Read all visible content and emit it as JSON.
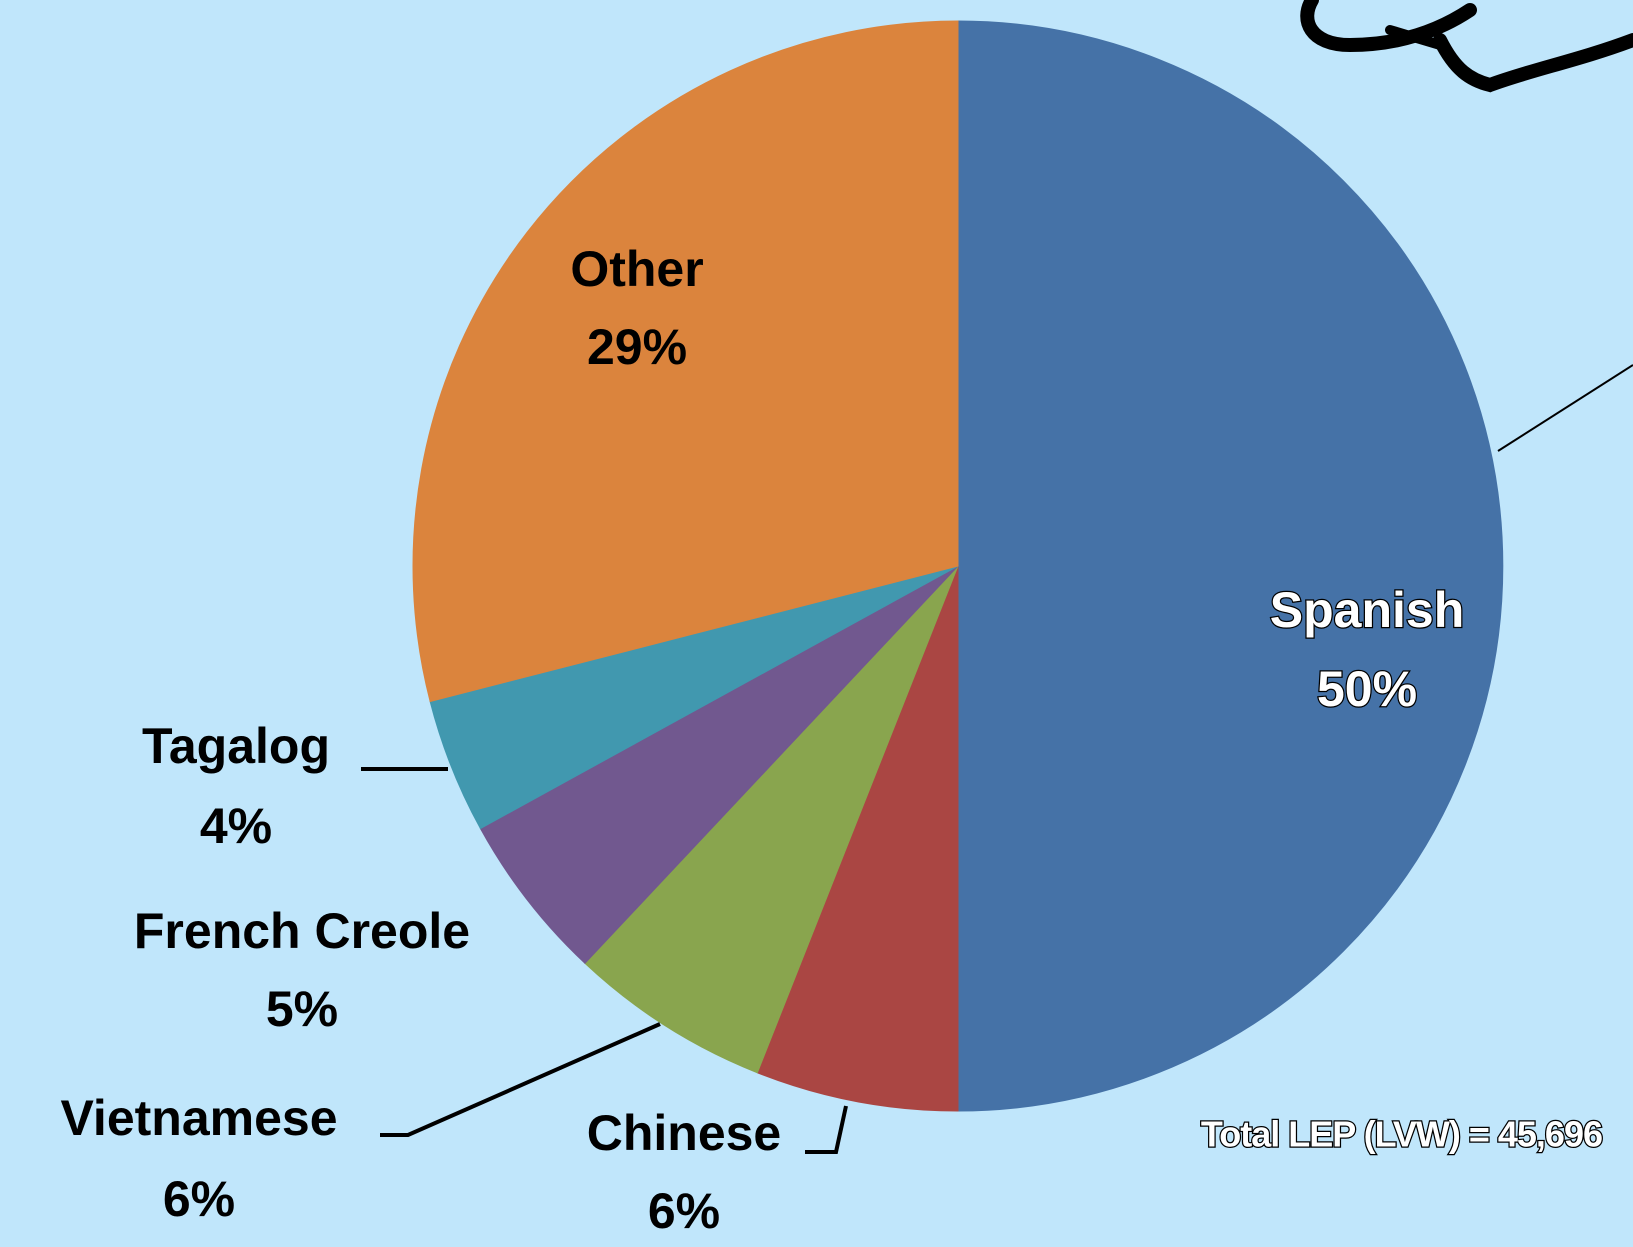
{
  "chart_data": {
    "type": "pie",
    "categories": [
      "Spanish",
      "Chinese",
      "Vietnamese",
      "French Creole",
      "Tagalog",
      "Other"
    ],
    "values": [
      50,
      6,
      6,
      5,
      4,
      29
    ],
    "value_labels": [
      "50%",
      "6%",
      "6%",
      "5%",
      "4%",
      "29%"
    ],
    "colors": [
      "#4572a7",
      "#aa4643",
      "#89a54e",
      "#71588f",
      "#4198af",
      "#db843d"
    ],
    "annotation": "Total LEP (LVW) = 45,696"
  }
}
